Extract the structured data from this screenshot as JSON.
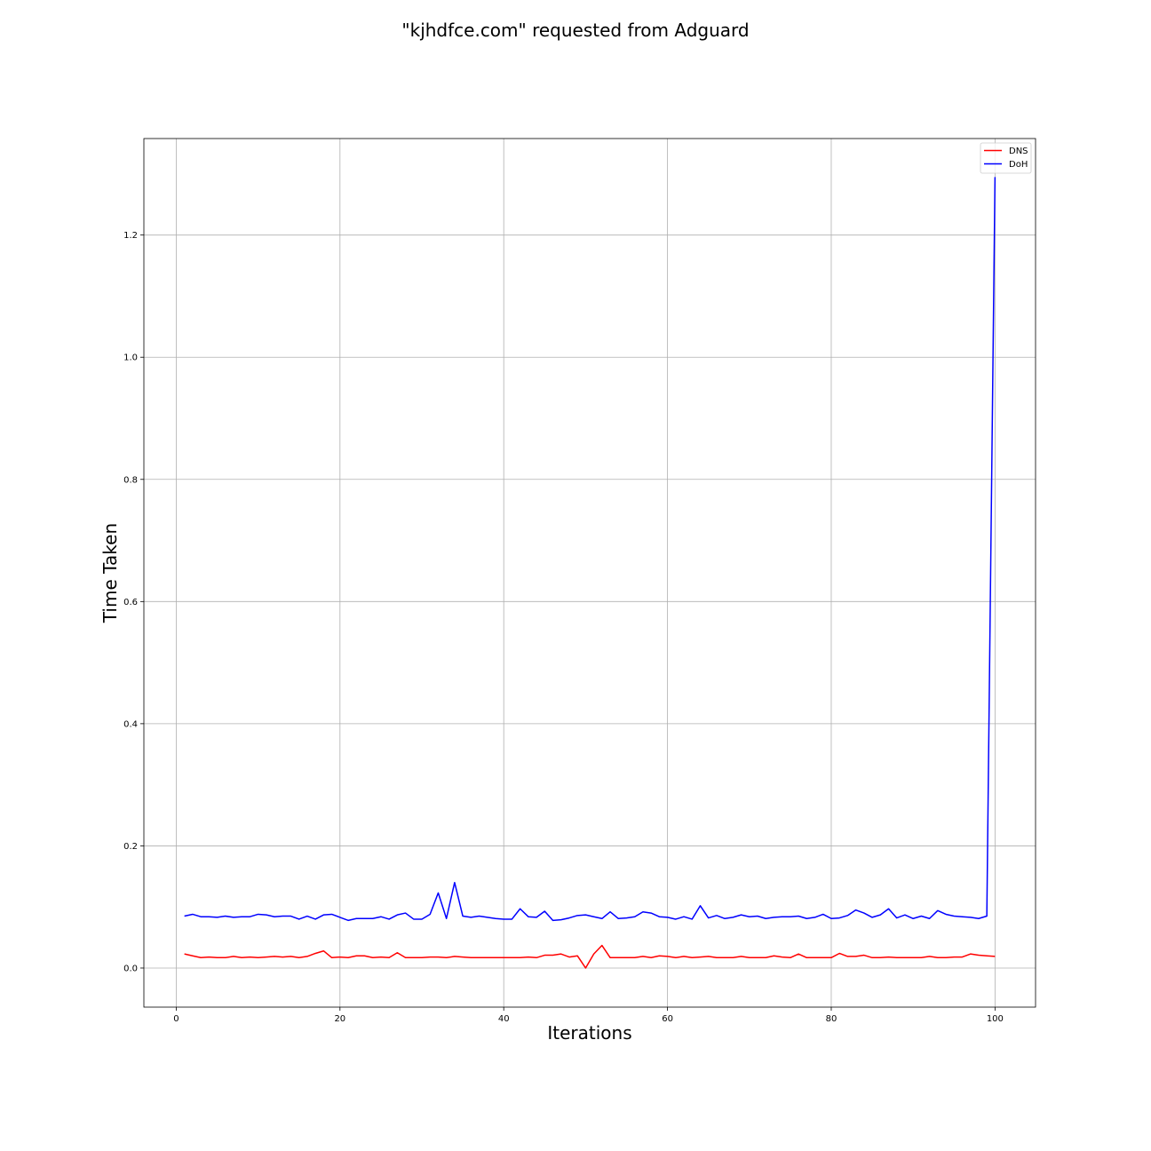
{
  "chart_data": {
    "type": "line",
    "title": "\"kjhdfce.com\" requested from Adguard",
    "xlabel": "Iterations",
    "ylabel": "Time Taken",
    "xlim": [
      -3.95,
      104.95
    ],
    "ylim": [
      -0.064,
      1.358
    ],
    "xticks": [
      0,
      20,
      40,
      60,
      80,
      100
    ],
    "yticks": [
      0.0,
      0.2,
      0.4,
      0.6,
      0.8,
      1.0,
      1.2
    ],
    "xtick_labels": [
      "0",
      "20",
      "40",
      "60",
      "80",
      "100"
    ],
    "ytick_labels": [
      "0.0",
      "0.2",
      "0.4",
      "0.6",
      "0.8",
      "1.0",
      "1.2"
    ],
    "grid": true,
    "legend_position": "top-right",
    "x": [
      1,
      2,
      3,
      4,
      5,
      6,
      7,
      8,
      9,
      10,
      11,
      12,
      13,
      14,
      15,
      16,
      17,
      18,
      19,
      20,
      21,
      22,
      23,
      24,
      25,
      26,
      27,
      28,
      29,
      30,
      31,
      32,
      33,
      34,
      35,
      36,
      37,
      38,
      39,
      40,
      41,
      42,
      43,
      44,
      45,
      46,
      47,
      48,
      49,
      50,
      51,
      52,
      53,
      54,
      55,
      56,
      57,
      58,
      59,
      60,
      61,
      62,
      63,
      64,
      65,
      66,
      67,
      68,
      69,
      70,
      71,
      72,
      73,
      74,
      75,
      76,
      77,
      78,
      79,
      80,
      81,
      82,
      83,
      84,
      85,
      86,
      87,
      88,
      89,
      90,
      91,
      92,
      93,
      94,
      95,
      96,
      97,
      98,
      99,
      100
    ],
    "series": [
      {
        "name": "DNS",
        "color": "#ff0000",
        "values": [
          0.023,
          0.02,
          0.017,
          0.018,
          0.017,
          0.017,
          0.019,
          0.017,
          0.018,
          0.017,
          0.018,
          0.019,
          0.018,
          0.019,
          0.017,
          0.019,
          0.024,
          0.028,
          0.017,
          0.018,
          0.017,
          0.02,
          0.02,
          0.017,
          0.018,
          0.017,
          0.025,
          0.017,
          0.017,
          0.017,
          0.018,
          0.018,
          0.017,
          0.019,
          0.018,
          0.017,
          0.017,
          0.017,
          0.017,
          0.017,
          0.017,
          0.017,
          0.018,
          0.017,
          0.021,
          0.021,
          0.023,
          0.018,
          0.02,
          0.0,
          0.023,
          0.037,
          0.017,
          0.017,
          0.017,
          0.017,
          0.019,
          0.017,
          0.02,
          0.019,
          0.017,
          0.019,
          0.017,
          0.018,
          0.019,
          0.017,
          0.017,
          0.017,
          0.019,
          0.017,
          0.017,
          0.017,
          0.02,
          0.018,
          0.017,
          0.023,
          0.017,
          0.017,
          0.017,
          0.017,
          0.024,
          0.019,
          0.019,
          0.021,
          0.017,
          0.017,
          0.018,
          0.017,
          0.017,
          0.017,
          0.017,
          0.019,
          0.017,
          0.017,
          0.018,
          0.018,
          0.023,
          0.021,
          0.02,
          0.019
        ]
      },
      {
        "name": "DoH",
        "color": "#0000ff",
        "values": [
          0.085,
          0.088,
          0.084,
          0.084,
          0.083,
          0.085,
          0.083,
          0.084,
          0.084,
          0.088,
          0.087,
          0.084,
          0.085,
          0.085,
          0.08,
          0.085,
          0.08,
          0.087,
          0.088,
          0.083,
          0.078,
          0.081,
          0.081,
          0.081,
          0.084,
          0.08,
          0.087,
          0.09,
          0.08,
          0.08,
          0.088,
          0.123,
          0.081,
          0.14,
          0.085,
          0.083,
          0.085,
          0.083,
          0.081,
          0.08,
          0.08,
          0.097,
          0.084,
          0.083,
          0.093,
          0.078,
          0.079,
          0.082,
          0.086,
          0.087,
          0.084,
          0.081,
          0.092,
          0.081,
          0.082,
          0.084,
          0.092,
          0.09,
          0.084,
          0.083,
          0.08,
          0.084,
          0.08,
          0.102,
          0.082,
          0.086,
          0.081,
          0.083,
          0.087,
          0.084,
          0.085,
          0.081,
          0.083,
          0.084,
          0.084,
          0.085,
          0.081,
          0.083,
          0.088,
          0.081,
          0.082,
          0.086,
          0.095,
          0.09,
          0.083,
          0.087,
          0.097,
          0.082,
          0.087,
          0.081,
          0.085,
          0.081,
          0.094,
          0.088,
          0.085,
          0.084,
          0.083,
          0.081,
          0.085,
          1.295
        ]
      }
    ]
  }
}
